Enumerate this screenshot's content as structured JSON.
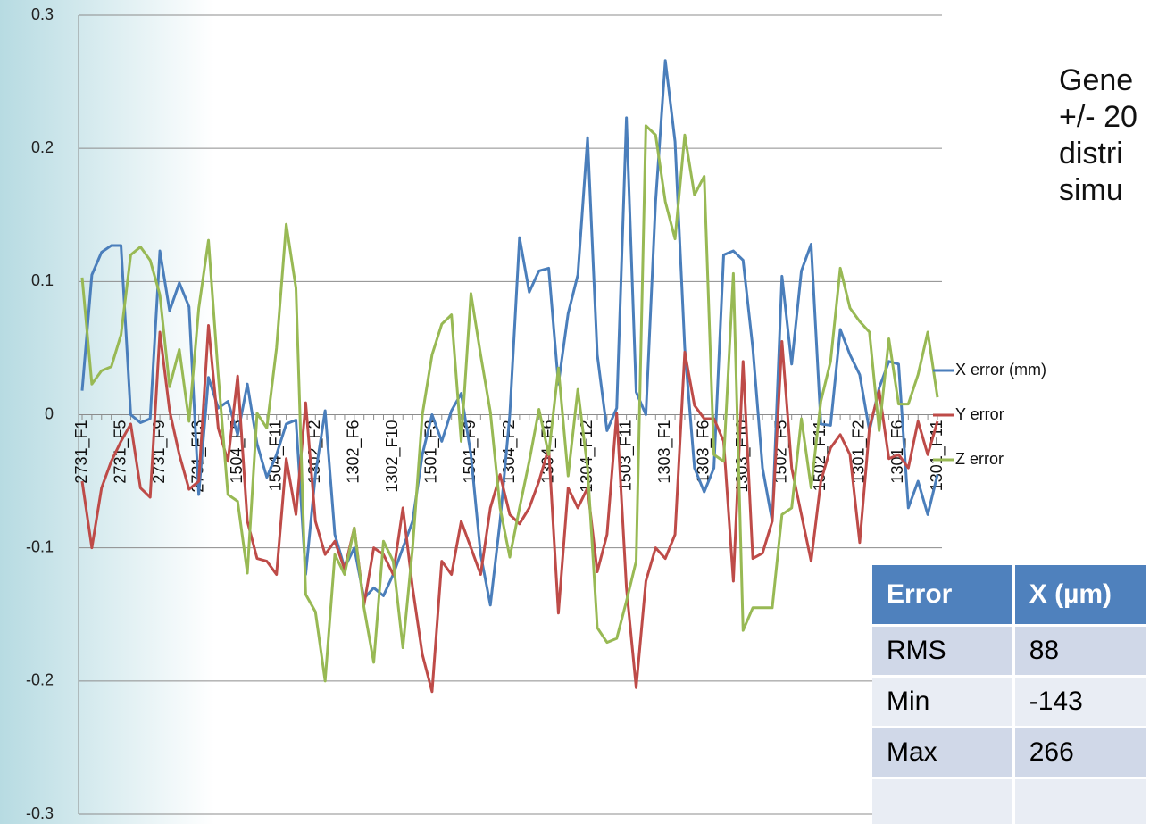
{
  "chart_data": {
    "type": "line",
    "categories": [
      "2731_F1",
      null,
      null,
      null,
      "2731_F5",
      null,
      null,
      null,
      "2731_F9",
      null,
      null,
      null,
      "2731_F13",
      null,
      null,
      null,
      "1504_F5",
      null,
      null,
      null,
      "1504_F11",
      null,
      null,
      null,
      "1302_F2",
      null,
      null,
      null,
      "1302_F6",
      null,
      null,
      null,
      "1302_F10",
      null,
      null,
      null,
      "1501_F3",
      null,
      null,
      null,
      "1501_F9",
      null,
      null,
      null,
      "1304_F2",
      null,
      null,
      null,
      "1304_F6",
      null,
      null,
      null,
      "1304_F12",
      null,
      null,
      null,
      "1503_F11",
      null,
      null,
      null,
      "1303_F1",
      null,
      null,
      null,
      "1303_F6",
      null,
      null,
      null,
      "1303_F10",
      null,
      null,
      null,
      "1502_F5",
      null,
      null,
      null,
      "1502_F11",
      null,
      null,
      null,
      "1301_F2",
      null,
      null,
      null,
      "1301_F6",
      null,
      null,
      null,
      "1301_F11"
    ],
    "series": [
      {
        "name": "X error (mm)",
        "color": "#4a7ebb",
        "values": [
          0.018,
          0.105,
          0.122,
          0.127,
          0.127,
          0.0,
          -0.006,
          -0.003,
          0.123,
          0.078,
          0.099,
          0.081,
          -0.06,
          0.028,
          0.005,
          0.01,
          -0.015,
          0.023,
          -0.022,
          -0.047,
          -0.03,
          -0.007,
          -0.004,
          -0.12,
          -0.045,
          0.003,
          -0.09,
          -0.115,
          -0.1,
          -0.138,
          -0.13,
          -0.136,
          -0.12,
          -0.1,
          -0.08,
          -0.03,
          0.0,
          -0.02,
          0.003,
          0.016,
          -0.03,
          -0.105,
          -0.143,
          -0.08,
          0.0,
          0.133,
          0.092,
          0.108,
          0.11,
          0.023,
          0.076,
          0.105,
          0.208,
          0.045,
          -0.012,
          0.005,
          0.223,
          0.017,
          0.0,
          0.16,
          0.266,
          0.205,
          0.05,
          -0.04,
          -0.058,
          -0.04,
          0.12,
          0.123,
          0.116,
          0.05,
          -0.04,
          -0.08,
          0.104,
          0.038,
          0.108,
          0.128,
          -0.007,
          -0.008,
          0.064,
          0.045,
          0.03,
          -0.012,
          0.02,
          0.04,
          0.038,
          -0.07,
          -0.05,
          -0.075,
          -0.045
        ]
      },
      {
        "name": "Y error",
        "color": "#be4b48",
        "values": [
          -0.05,
          -0.1,
          -0.055,
          -0.035,
          -0.02,
          -0.007,
          -0.055,
          -0.062,
          0.062,
          0.003,
          -0.03,
          -0.056,
          -0.05,
          0.067,
          -0.01,
          -0.035,
          0.029,
          -0.08,
          -0.108,
          -0.11,
          -0.12,
          -0.033,
          -0.075,
          0.009,
          -0.08,
          -0.105,
          -0.095,
          -0.116,
          -0.085,
          -0.143,
          -0.1,
          -0.105,
          -0.12,
          -0.07,
          -0.13,
          -0.18,
          -0.208,
          -0.11,
          -0.12,
          -0.08,
          -0.1,
          -0.12,
          -0.07,
          -0.045,
          -0.075,
          -0.082,
          -0.07,
          -0.05,
          -0.025,
          -0.149,
          -0.055,
          -0.07,
          -0.055,
          -0.118,
          -0.09,
          0.001,
          -0.13,
          -0.205,
          -0.125,
          -0.1,
          -0.108,
          -0.09,
          0.047,
          0.007,
          -0.003,
          -0.003,
          -0.02,
          -0.125,
          0.04,
          -0.108,
          -0.104,
          -0.08,
          0.055,
          -0.04,
          -0.075,
          -0.11,
          -0.05,
          -0.025,
          -0.015,
          -0.03,
          -0.096,
          -0.01,
          0.018,
          -0.033,
          -0.03,
          -0.04,
          -0.005,
          -0.03,
          -0.005
        ]
      },
      {
        "name": "Z error",
        "color": "#98b954",
        "values": [
          0.103,
          0.023,
          0.033,
          0.036,
          0.06,
          0.12,
          0.126,
          0.116,
          0.09,
          0.021,
          0.049,
          -0.005,
          0.08,
          0.131,
          0.03,
          -0.06,
          -0.065,
          -0.119,
          0.001,
          -0.01,
          0.05,
          0.143,
          0.095,
          -0.135,
          -0.148,
          -0.2,
          -0.105,
          -0.12,
          -0.085,
          -0.145,
          -0.186,
          -0.095,
          -0.11,
          -0.175,
          -0.1,
          0.0,
          0.045,
          0.068,
          0.075,
          -0.02,
          0.091,
          0.045,
          0.002,
          -0.07,
          -0.107,
          -0.07,
          -0.035,
          0.004,
          -0.03,
          0.035,
          -0.046,
          0.019,
          -0.04,
          -0.16,
          -0.171,
          -0.168,
          -0.14,
          -0.11,
          0.217,
          0.21,
          0.16,
          0.132,
          0.21,
          0.165,
          0.179,
          -0.03,
          -0.035,
          0.106,
          -0.162,
          -0.145,
          -0.145,
          -0.145,
          -0.075,
          -0.07,
          -0.003,
          -0.055,
          0.01,
          0.04,
          0.11,
          0.08,
          0.07,
          0.062,
          -0.012,
          0.057,
          0.008,
          0.008,
          0.03,
          0.062,
          0.013
        ]
      }
    ],
    "ylim": [
      -0.3,
      0.3
    ],
    "yticks": [
      -0.3,
      -0.2,
      -0.1,
      0,
      0.1,
      0.2,
      0.3
    ],
    "grid": true,
    "legend": "right"
  },
  "side_text": [
    "Gene",
    "+/- 20",
    "distri",
    "simu"
  ],
  "table": {
    "header": [
      "Error",
      "X (µm)"
    ],
    "rows": [
      [
        "RMS",
        "88"
      ],
      [
        "Min",
        "-143"
      ],
      [
        "Max",
        "266"
      ],
      [
        "",
        ""
      ]
    ]
  }
}
